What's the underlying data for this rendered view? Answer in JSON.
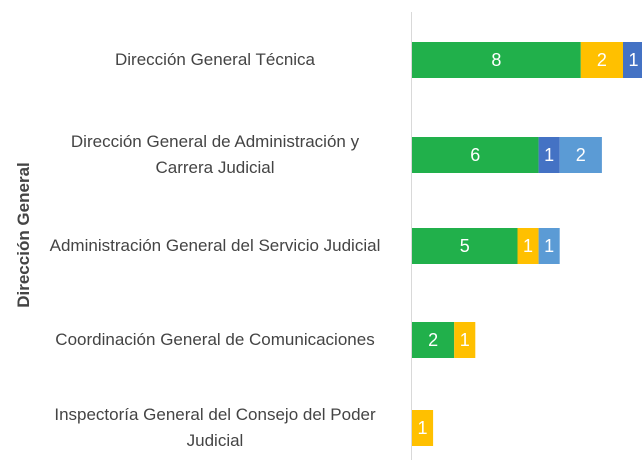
{
  "chart_data": {
    "type": "stacked-barh",
    "y_label": "Dirección General",
    "categories": [
      "Dirección General Técnica",
      "Dirección General de Administración y Carrera Judicial",
      "Administración General del Servicio Judicial",
      "Coordinación General de Comunicaciones",
      "Inspectoría General del Consejo del Poder Judicial"
    ],
    "series": [
      {
        "color": "#21b04b",
        "values": [
          8,
          6,
          5,
          2,
          null
        ]
      },
      {
        "color": "#ffc000",
        "values": [
          2,
          null,
          1,
          1,
          1
        ]
      },
      {
        "color": "#4472c4",
        "values": [
          1,
          1,
          null,
          null,
          null
        ]
      },
      {
        "color": "#5b9bd5",
        "values": [
          null,
          2,
          1,
          null,
          null
        ]
      }
    ],
    "xlim": [
      0,
      11
    ]
  }
}
